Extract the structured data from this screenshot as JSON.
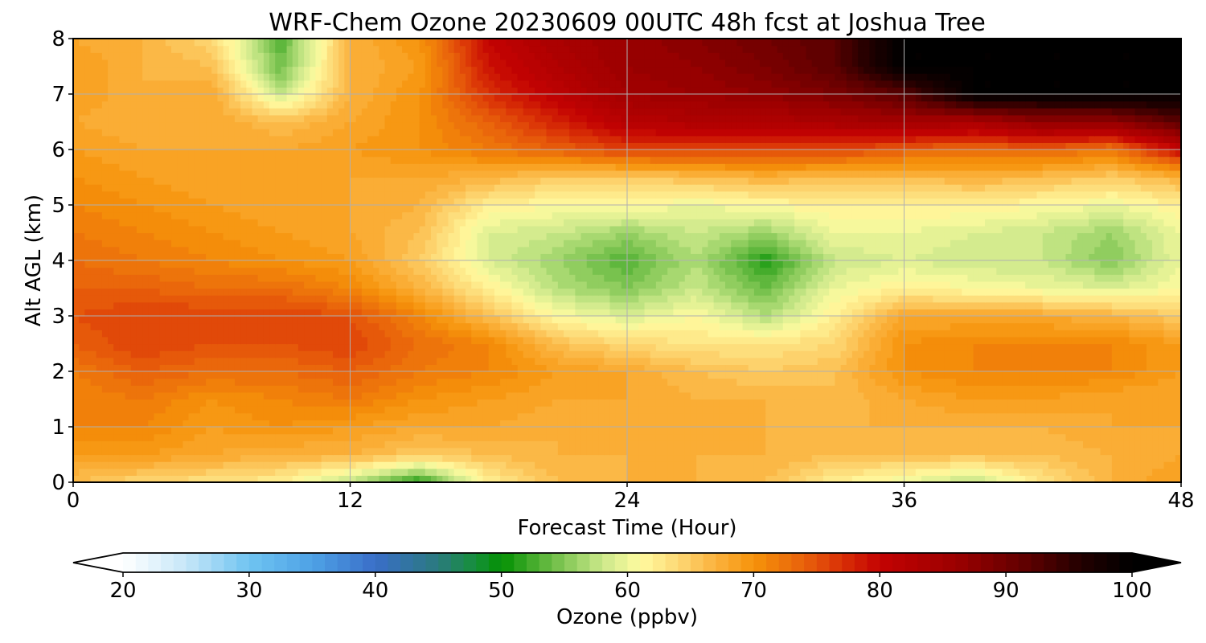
{
  "chart_data": {
    "type": "heatmap",
    "title": "WRF-Chem Ozone  20230609 00UTC 48h fcst at Joshua Tree",
    "xlabel": "Forecast Time (Hour)",
    "ylabel": "Alt AGL (km)",
    "xlim": [
      0,
      48
    ],
    "ylim": [
      0,
      8
    ],
    "xticks": [
      0,
      12,
      24,
      36,
      48
    ],
    "yticks": [
      0,
      1,
      2,
      3,
      4,
      5,
      6,
      7,
      8
    ],
    "grid": true,
    "x": [
      0,
      3,
      6,
      9,
      12,
      15,
      18,
      21,
      24,
      27,
      30,
      33,
      36,
      39,
      42,
      45,
      48
    ],
    "y": [
      0,
      0.5,
      1,
      1.5,
      2,
      2.5,
      3,
      3.5,
      4,
      4.5,
      5,
      5.5,
      6,
      6.5,
      7,
      7.5,
      8
    ],
    "z": [
      [
        66,
        64,
        63,
        62,
        57,
        51,
        62,
        66,
        67,
        67,
        66,
        62,
        60,
        57,
        63,
        67,
        69
      ],
      [
        69,
        69,
        68,
        67,
        67,
        65,
        66,
        67,
        67,
        67,
        67,
        66,
        66,
        66,
        66,
        67,
        68
      ],
      [
        71,
        71,
        69,
        70,
        69,
        68,
        68,
        67,
        68,
        67,
        67,
        67,
        67,
        67,
        67,
        68,
        68
      ],
      [
        71,
        72,
        70,
        71,
        72,
        70,
        69,
        68,
        68,
        67,
        67,
        66,
        68,
        69,
        69,
        68,
        68
      ],
      [
        72,
        74,
        73,
        73,
        74,
        72,
        71,
        69,
        68,
        66,
        65,
        66,
        70,
        71,
        71,
        71,
        69
      ],
      [
        74,
        76,
        75,
        75,
        76,
        73,
        71,
        66,
        64,
        63,
        63,
        64,
        70,
        71,
        71,
        71,
        69
      ],
      [
        75,
        76,
        76,
        76,
        75,
        71,
        66,
        61,
        59,
        61,
        57,
        62,
        68,
        68,
        68,
        67,
        65
      ],
      [
        74,
        74,
        73,
        73,
        71,
        67,
        62,
        57,
        55,
        58,
        54,
        60,
        62,
        61,
        60,
        59,
        61
      ],
      [
        73,
        72,
        71,
        70,
        69,
        65,
        59,
        56,
        53,
        57,
        51,
        58,
        59,
        58,
        58,
        55,
        60
      ],
      [
        72,
        71,
        70,
        69,
        68,
        66,
        59,
        58,
        56,
        58,
        56,
        60,
        60,
        59,
        58,
        56,
        60
      ],
      [
        71,
        70,
        69,
        68,
        68,
        67,
        62,
        61,
        61,
        60,
        61,
        62,
        62,
        62,
        61,
        60,
        62
      ],
      [
        70,
        69,
        68,
        68,
        68,
        68,
        67,
        65,
        65,
        66,
        67,
        66,
        66,
        67,
        66,
        65,
        67
      ],
      [
        69,
        68,
        68,
        68,
        69,
        70,
        72,
        74,
        76,
        76,
        76,
        76,
        74,
        73,
        74,
        72,
        80
      ],
      [
        68,
        67,
        68,
        66,
        68,
        70,
        74,
        78,
        82,
        83,
        83,
        84,
        85,
        84,
        87,
        87,
        92
      ],
      [
        69,
        67,
        68,
        58,
        67,
        70,
        77,
        81,
        85,
        86,
        87,
        89,
        92,
        100,
        100,
        100,
        100
      ],
      [
        69,
        67,
        66,
        54,
        67,
        69,
        79,
        83,
        86,
        87,
        89,
        92,
        100,
        100,
        100,
        100,
        100
      ],
      [
        68,
        67,
        64,
        53,
        67,
        70,
        80,
        84,
        86,
        88,
        90,
        92,
        100,
        100,
        100,
        100,
        100
      ]
    ],
    "colorbar": {
      "label": "Ozone  (ppbv)",
      "min": 20,
      "max": 100,
      "step": 1,
      "ticks": [
        20,
        30,
        40,
        50,
        60,
        70,
        80,
        90,
        100
      ],
      "extend": "both",
      "stops": [
        {
          "v": 20,
          "c": "#ffffff"
        },
        {
          "v": 25,
          "c": "#c6e6f8"
        },
        {
          "v": 30,
          "c": "#6fc4f1"
        },
        {
          "v": 35,
          "c": "#4ea2e6"
        },
        {
          "v": 40,
          "c": "#3a6ec8"
        },
        {
          "v": 45,
          "c": "#2a7a7e"
        },
        {
          "v": 48,
          "c": "#169038"
        },
        {
          "v": 50,
          "c": "#039003"
        },
        {
          "v": 54,
          "c": "#6cbd45"
        },
        {
          "v": 58,
          "c": "#cbe88a"
        },
        {
          "v": 61,
          "c": "#fffba0"
        },
        {
          "v": 64,
          "c": "#fdd875"
        },
        {
          "v": 67,
          "c": "#fbb23d"
        },
        {
          "v": 70,
          "c": "#f6930a"
        },
        {
          "v": 74,
          "c": "#e8610b"
        },
        {
          "v": 77,
          "c": "#d93006"
        },
        {
          "v": 80,
          "c": "#c30202"
        },
        {
          "v": 86,
          "c": "#9c0000"
        },
        {
          "v": 92,
          "c": "#5a0000"
        },
        {
          "v": 96,
          "c": "#220000"
        },
        {
          "v": 100,
          "c": "#000000"
        }
      ]
    }
  }
}
